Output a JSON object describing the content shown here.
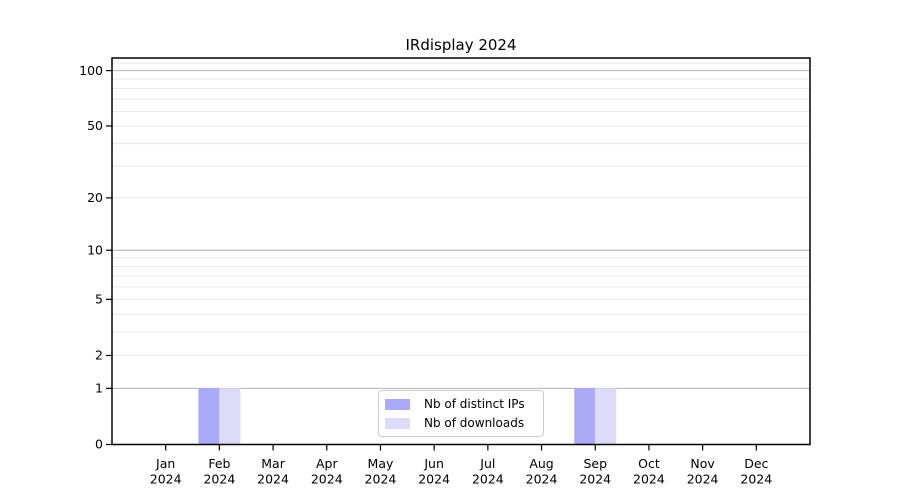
{
  "chart_data": {
    "type": "bar",
    "title": "IRdisplay 2024",
    "x_categories": [
      "Jan 2024",
      "Feb 2024",
      "Mar 2024",
      "Apr 2024",
      "May 2024",
      "Jun 2024",
      "Jul 2024",
      "Aug 2024",
      "Sep 2024",
      "Oct 2024",
      "Nov 2024",
      "Dec 2024"
    ],
    "series": [
      {
        "name": "Nb of distinct IPs",
        "color": "#aaaaf7",
        "values": [
          0,
          1,
          0,
          0,
          0,
          0,
          0,
          0,
          1,
          0,
          0,
          0
        ]
      },
      {
        "name": "Nb of downloads",
        "color": "#dcdcfa",
        "values": [
          0,
          1,
          0,
          0,
          0,
          0,
          0,
          0,
          1,
          0,
          0,
          0
        ]
      }
    ],
    "yscale": "log1p",
    "ylim": [
      0,
      117
    ],
    "yticks": [
      0,
      1,
      2,
      5,
      10,
      20,
      50,
      100
    ],
    "ytick_labels": [
      "0",
      "1",
      "2",
      "5",
      "10",
      "20",
      "50",
      "100"
    ],
    "grid": "horizontal",
    "grid_major_values": [
      1,
      10,
      100
    ],
    "grid_minor_values": [
      2,
      3,
      4,
      5,
      6,
      7,
      8,
      9,
      20,
      30,
      40,
      50,
      60,
      70,
      80,
      90,
      110
    ],
    "legend_position": "lower center inside",
    "colors": {
      "frame": "#000000",
      "tick": "#000000",
      "grid_major": "#b2b2b2",
      "grid_minor": "#e8e8e8",
      "legend_border": "#cccccc",
      "background": "#ffffff"
    }
  }
}
